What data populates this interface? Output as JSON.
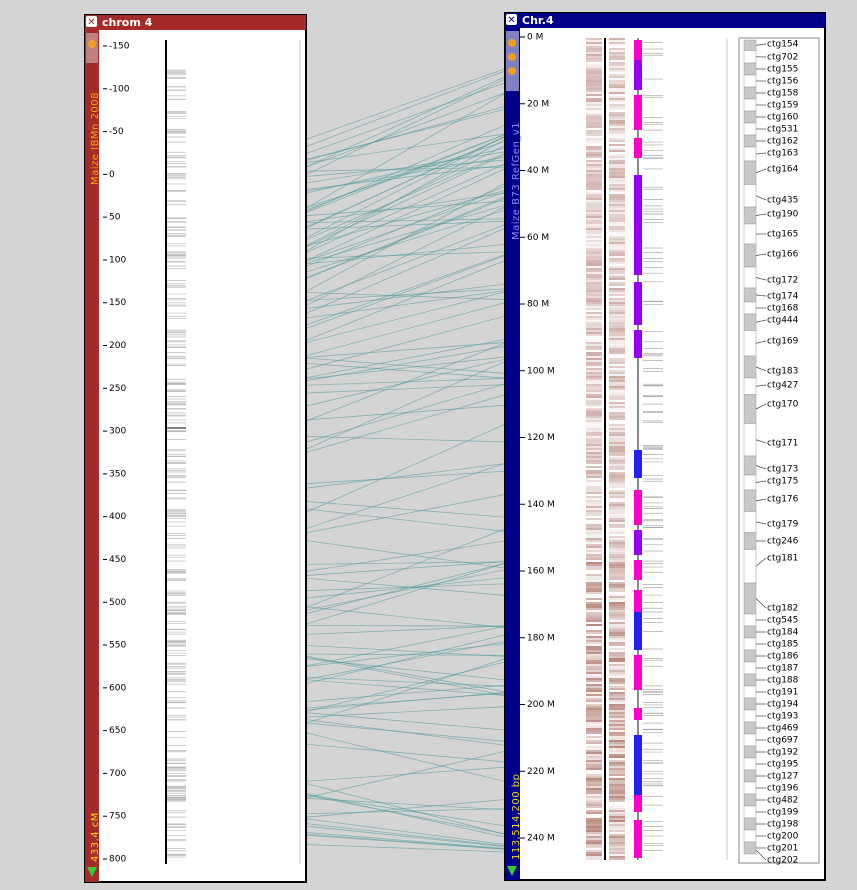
{
  "left_map": {
    "title": "chrom 4",
    "set_name": "Maize IBMn 2008",
    "length_label": "433.4 cM",
    "ticks": [
      -150,
      -100,
      -50,
      0,
      50,
      100,
      150,
      200,
      250,
      300,
      350,
      400,
      450,
      500,
      550,
      600,
      650,
      700,
      750,
      800
    ]
  },
  "right_map": {
    "title": "Chr.4",
    "set_name": "Maize B73 RefGen_v1",
    "length_label": "113,514,200 bp",
    "ticks": [
      {
        "value": 0,
        "label": "0 M"
      },
      {
        "value": 20,
        "label": "20 M"
      },
      {
        "value": 40,
        "label": "40 M"
      },
      {
        "value": 60,
        "label": "60 M"
      },
      {
        "value": 80,
        "label": "80 M"
      },
      {
        "value": 100,
        "label": "100 M"
      },
      {
        "value": 120,
        "label": "120 M"
      },
      {
        "value": 140,
        "label": "140 M"
      },
      {
        "value": 160,
        "label": "160 M"
      },
      {
        "value": 180,
        "label": "180 M"
      },
      {
        "value": 200,
        "label": "200 M"
      },
      {
        "value": 220,
        "label": "220 M"
      },
      {
        "value": 240,
        "label": "240 M"
      }
    ]
  },
  "contigs": [
    "ctg154",
    "ctg702",
    "ctg155",
    "ctg156",
    "ctg158",
    "ctg159",
    "ctg160",
    "ctg531",
    "ctg162",
    "ctg163",
    "ctg164",
    "ctg435",
    "ctg190",
    "ctg165",
    "ctg166",
    "ctg172",
    "ctg174",
    "ctg168",
    "ctg444",
    "ctg169",
    "ctg183",
    "ctg427",
    "ctg170",
    "ctg171",
    "ctg173",
    "ctg175",
    "ctg176",
    "ctg179",
    "ctg246",
    "ctg181",
    "ctg182",
    "ctg545",
    "ctg184",
    "ctg185",
    "ctg186",
    "ctg187",
    "ctg188",
    "ctg191",
    "ctg194",
    "ctg193",
    "ctg469",
    "ctg697",
    "ctg192",
    "ctg195",
    "ctg127",
    "ctg196",
    "ctg482",
    "ctg199",
    "ctg198",
    "ctg200",
    "ctg201",
    "ctg202"
  ]
}
